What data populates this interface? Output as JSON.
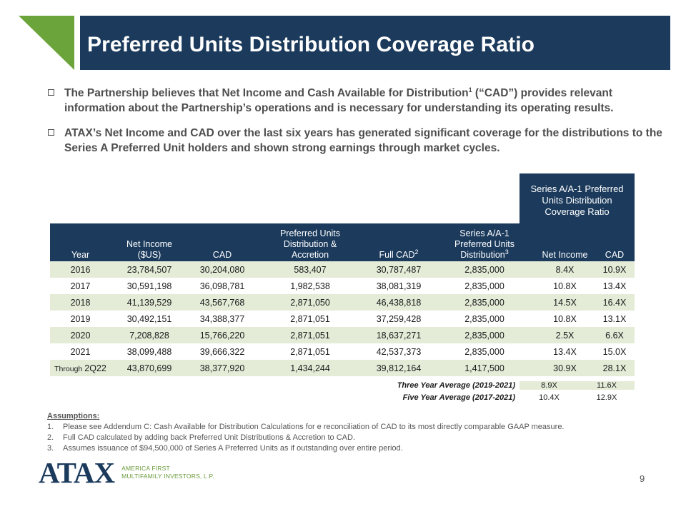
{
  "header": {
    "title": "Preferred Units Distribution Coverage Ratio",
    "accent_color": "#6ba43a",
    "bar_color": "#1b3a5c"
  },
  "bullets": [
    {
      "parts": [
        "The Partnership believes that Net Income and Cash Available for Distribution",
        "1",
        " (“CAD”) provides relevant information about the Partnership’s operations and is necessary for understanding its operating results."
      ]
    },
    {
      "text": "ATAX’s Net Income and CAD over the last six years has generated significant coverage for the distributions to the Series A Preferred Unit holders and shown strong earnings through market cycles."
    }
  ],
  "table": {
    "coverage_group_header": [
      "Series A/A-1 Preferred",
      "Units Distribution",
      "Coverage Ratio"
    ],
    "columns": [
      {
        "lines": [
          "Year"
        ]
      },
      {
        "lines": [
          "Net Income",
          "($US)"
        ]
      },
      {
        "lines": [
          "CAD"
        ]
      },
      {
        "lines": [
          "Preferred Units",
          "Distribution &",
          "Accretion"
        ]
      },
      {
        "lines": [
          "Full CAD"
        ],
        "sup": "2"
      },
      {
        "lines": [
          "Series A/A-1",
          "Preferred Units",
          "Distribution"
        ],
        "sup": "3"
      },
      {
        "lines": [
          "Net Income"
        ]
      },
      {
        "lines": [
          "CAD"
        ]
      }
    ],
    "rows": [
      {
        "year": "2016",
        "net_income": "23,784,507",
        "cad": "30,204,080",
        "pref_dist": "583,407",
        "full_cad": "30,787,487",
        "series_dist": "2,835,000",
        "ratio_ni": "8.4X",
        "ratio_cad": "10.9X"
      },
      {
        "year": "2017",
        "net_income": "30,591,198",
        "cad": "36,098,781",
        "pref_dist": "1,982,538",
        "full_cad": "38,081,319",
        "series_dist": "2,835,000",
        "ratio_ni": "10.8X",
        "ratio_cad": "13.4X"
      },
      {
        "year": "2018",
        "net_income": "41,139,529",
        "cad": "43,567,768",
        "pref_dist": "2,871,050",
        "full_cad": "46,438,818",
        "series_dist": "2,835,000",
        "ratio_ni": "14.5X",
        "ratio_cad": "16.4X"
      },
      {
        "year": "2019",
        "net_income": "30,492,151",
        "cad": "34,388,377",
        "pref_dist": "2,871,051",
        "full_cad": "37,259,428",
        "series_dist": "2,835,000",
        "ratio_ni": "10.8X",
        "ratio_cad": "13.1X"
      },
      {
        "year": "2020",
        "net_income": "7,208,828",
        "cad": "15,766,220",
        "pref_dist": "2,871,051",
        "full_cad": "18,637,271",
        "series_dist": "2,835,000",
        "ratio_ni": "2.5X",
        "ratio_cad": "6.6X"
      },
      {
        "year": "2021",
        "net_income": "38,099,488",
        "cad": "39,666,322",
        "pref_dist": "2,871,051",
        "full_cad": "42,537,373",
        "series_dist": "2,835,000",
        "ratio_ni": "13.4X",
        "ratio_cad": "15.0X"
      },
      {
        "year_prefix": "Through",
        "year": "2Q22",
        "net_income": "43,870,699",
        "cad": "38,377,920",
        "pref_dist": "1,434,244",
        "full_cad": "39,812,164",
        "series_dist": "1,417,500",
        "ratio_ni": "30.9X",
        "ratio_cad": "28.1X"
      }
    ],
    "averages": [
      {
        "label": "Three Year Average (2019-2021)",
        "net_income": "8.9X",
        "cad": "11.6X"
      },
      {
        "label": "Five Year Average (2017-2021)",
        "net_income": "10.4X",
        "cad": "12.9X"
      }
    ],
    "row_shade_color": "#e4ecd8"
  },
  "assumptions": {
    "title": "Assumptions:",
    "notes": [
      {
        "num": "1.",
        "text": "Please see Addendum C: Cash Available for Distribution Calculations for e reconciliation of CAD to its most directly comparable GAAP measure."
      },
      {
        "num": "2.",
        "text": "Full CAD calculated by adding back Preferred Unit Distributions & Accretion to CAD."
      },
      {
        "num": "3.",
        "text": "Assumes issuance of $94,500,000 of Series A Preferred Units as if outstanding over entire period."
      }
    ]
  },
  "footer": {
    "logo_text": "ATAX",
    "logo_sub": [
      "AMERICA FIRST",
      "MULTIFAMILY INVESTORS, L.P."
    ],
    "page_number": "9"
  }
}
